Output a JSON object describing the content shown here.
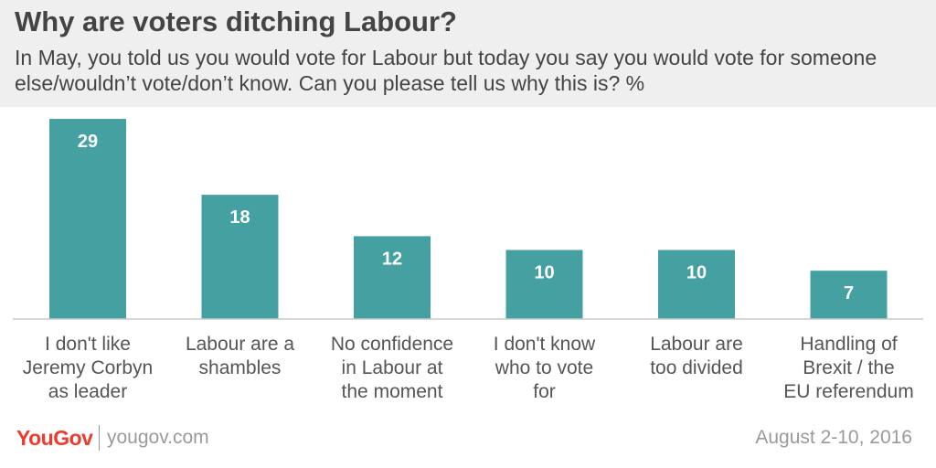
{
  "header": {
    "title": "Why are voters ditching Labour?",
    "subtitle": "In May, you told us you would vote for Labour but today you say you would vote for someone else/wouldn’t vote/don’t know. Can you please tell us why this is? %"
  },
  "chart_data": {
    "type": "bar",
    "categories": [
      [
        "I don't like",
        "Jeremy Corbyn",
        "as leader"
      ],
      [
        "Labour are a",
        "shambles"
      ],
      [
        "No confidence",
        "in Labour at",
        "the moment"
      ],
      [
        "I don't know",
        "who to vote",
        "for"
      ],
      [
        "Labour are",
        "too divided"
      ],
      [
        "Handling of",
        "Brexit / the",
        "EU referendum"
      ]
    ],
    "values": [
      29,
      18,
      12,
      10,
      10,
      7
    ],
    "value_labels": [
      "29",
      "18",
      "12",
      "10",
      "10",
      "7"
    ],
    "ylim": [
      0,
      30
    ],
    "bar_color": "#45a0a2",
    "grid": false
  },
  "footer": {
    "logo": "YouGov",
    "site": "yougov.com",
    "date": "August 2-10, 2016"
  }
}
